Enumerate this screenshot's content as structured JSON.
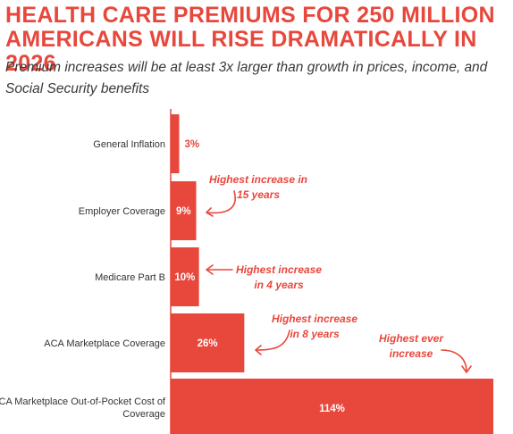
{
  "header": {
    "title": "HEALTH CARE PREMIUMS FOR 250 MILLION AMERICANS WILL RISE DRAMATICALLY IN 2026",
    "subtitle": "Premium increases will be at least 3x larger than growth in prices, income, and Social Security benefits"
  },
  "colors": {
    "bar": "#e8473c",
    "axis": "#e8473c",
    "annotation": "#e8473c",
    "label_inside": "#ffffff",
    "label_outside": "#e8473c"
  },
  "chart_data": {
    "type": "bar",
    "orientation": "horizontal",
    "title": "HEALTH CARE PREMIUMS FOR 250 MILLION AMERICANS WILL RISE DRAMATICALLY IN 2026",
    "subtitle": "Premium increases will be at least 3x larger than growth in prices, income, and Social Security benefits",
    "categories": [
      "General Inflation",
      "Employer Coverage",
      "Medicare Part B",
      "ACA Marketplace Coverage",
      "ACA Marketplace Out-of-Pocket Cost of Coverage"
    ],
    "values": [
      3,
      9,
      10,
      26,
      114
    ],
    "unit": "%",
    "value_labels": [
      "3%",
      "9%",
      "10%",
      "26%",
      "114%"
    ],
    "xlim": [
      0,
      114
    ],
    "grid": false,
    "legend": "none",
    "annotations": [
      {
        "category": "Employer Coverage",
        "lines": [
          "Highest increase in",
          "15 years"
        ]
      },
      {
        "category": "Medicare Part B",
        "lines": [
          "Highest increase",
          "in 4 years"
        ]
      },
      {
        "category": "ACA Marketplace Coverage",
        "lines": [
          "Highest increase",
          "in 8 years"
        ]
      },
      {
        "category": "ACA Marketplace Out-of-Pocket Cost of Coverage",
        "lines": [
          "Highest ever",
          "increase"
        ]
      }
    ]
  }
}
